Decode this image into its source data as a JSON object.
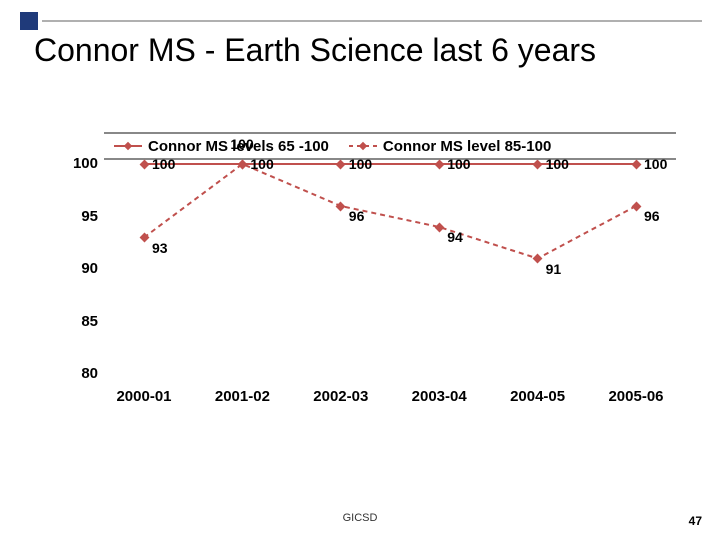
{
  "title": "Connor MS - Earth Science last 6 years",
  "footer": "GICSD",
  "page_number": "47",
  "chart": {
    "type": "line",
    "xlabels": [
      "2000-01",
      "2001-02",
      "2002-03",
      "2003-04",
      "2004-05",
      "2005-06"
    ],
    "ylim": [
      80,
      100
    ],
    "ytick_step": 5,
    "yticks": [
      100,
      95,
      90,
      85,
      80
    ],
    "series": [
      {
        "name": "Connor MS levels 65 -100",
        "color": "#c0504d",
        "marker_color": "#c0504d",
        "line_style": "solid",
        "values": [
          100,
          100,
          100,
          100,
          100,
          100
        ],
        "labels": [
          "100",
          "100",
          "100",
          "100",
          "100",
          "100"
        ]
      },
      {
        "name": "Connor MS level 85-100",
        "color": "#c0504d",
        "marker_color": "#c0504d",
        "line_style": "dashed",
        "values": [
          93,
          100,
          96,
          94,
          91,
          96
        ],
        "labels": [
          "93",
          "100",
          "96",
          "94",
          "91",
          "96"
        ]
      }
    ],
    "background_color": "#ffffff",
    "label_fontsize": 14,
    "axis_fontsize": 15
  }
}
